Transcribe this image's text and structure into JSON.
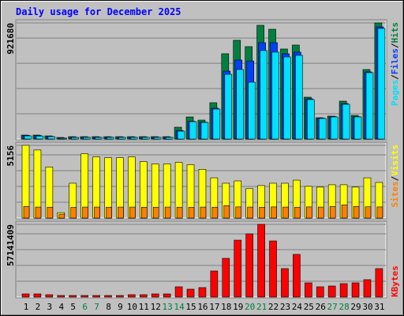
{
  "chart_data": [
    {
      "type": "bar",
      "title": "Daily usage for December 2025",
      "ylim": [
        0,
        921680
      ],
      "yticks": [
        921680
      ],
      "legend_separator": "/",
      "series": [
        {
          "name": "Hits",
          "color": "#008040",
          "values": [
            31350,
            31350,
            25080,
            12540,
            18810,
            18810,
            18810,
            18810,
            18810,
            18810,
            18810,
            18810,
            18810,
            94050,
            175560,
            150480,
            288420,
            677160,
            783750,
            733590,
            902880,
            871530,
            714780,
            746130,
            332310,
            169290,
            181830,
            300960,
            188100,
            551760,
            921680
          ]
        },
        {
          "name": "Files",
          "color": "#0040ff",
          "values": [
            28000,
            27000,
            21000,
            9000,
            15000,
            15500,
            15500,
            15500,
            15500,
            15500,
            15500,
            15500,
            15500,
            68000,
            141000,
            134000,
            245000,
            539000,
            627000,
            620000,
            765000,
            765000,
            677000,
            690000,
            320000,
            166000,
            178000,
            282000,
            178000,
            533000,
            890000
          ]
        },
        {
          "name": "Pages",
          "color": "#00e0ff",
          "values": [
            25000,
            24000,
            19000,
            7000,
            13000,
            13500,
            13500,
            13500,
            13500,
            13500,
            13500,
            13500,
            13500,
            62700,
            137900,
            131600,
            238000,
            514000,
            551800,
            451400,
            702200,
            689700,
            652000,
            664600,
            313500,
            163000,
            175600,
            275900,
            175600,
            526700,
            877800
          ]
        }
      ]
    },
    {
      "type": "bar",
      "ylim": [
        0,
        5156
      ],
      "yticks": [
        5156
      ],
      "legend_separator": "/",
      "series": [
        {
          "name": "Visits",
          "color": "#ffff00",
          "values": [
            5156,
            4827,
            3620,
            384,
            2468,
            4553,
            4333,
            4278,
            4278,
            4333,
            4004,
            3840,
            3840,
            3949,
            3785,
            3456,
            2852,
            2468,
            2633,
            2084,
            2304,
            2468,
            2468,
            2688,
            2249,
            2194,
            2359,
            2359,
            2194,
            2852,
            2523
          ]
        },
        {
          "name": "Sites",
          "color": "#ff8000",
          "values": [
            820,
            780,
            770,
            275,
            760,
            780,
            780,
            770,
            780,
            780,
            770,
            770,
            780,
            770,
            760,
            780,
            770,
            880,
            790,
            780,
            770,
            790,
            780,
            770,
            790,
            780,
            820,
            930,
            820,
            800,
            790
          ]
        }
      ]
    },
    {
      "type": "bar",
      "ylim": [
        0,
        57141409
      ],
      "yticks": [
        57141409
      ],
      "categories": [
        "1",
        "2",
        "3",
        "4",
        "5",
        "6",
        "7",
        "8",
        "9",
        "10",
        "11",
        "12",
        "13",
        "14",
        "15",
        "16",
        "17",
        "18",
        "19",
        "20",
        "21",
        "22",
        "23",
        "24",
        "25",
        "26",
        "27",
        "28",
        "29",
        "30",
        "31"
      ],
      "category_colors": [
        "#000000",
        "#000000",
        "#000000",
        "#000000",
        "#000000",
        "#008040",
        "#008040",
        "#000000",
        "#000000",
        "#000000",
        "#000000",
        "#000000",
        "#008040",
        "#008040",
        "#000000",
        "#000000",
        "#000000",
        "#000000",
        "#000000",
        "#008040",
        "#008040",
        "#000000",
        "#000000",
        "#000000",
        "#000000",
        "#000000",
        "#008040",
        "#008040",
        "#000000",
        "#000000",
        "#000000"
      ],
      "series": [
        {
          "name": "KBytes",
          "color": "#ff0000",
          "values": [
            2484400,
            2484400,
            1863300,
            1242200,
            1242200,
            1242200,
            1242200,
            1242200,
            1242200,
            1863300,
            1863300,
            2484400,
            2484400,
            8074300,
            6211000,
            7453200,
            20496300,
            30433900,
            44719200,
            49688000,
            57141409,
            44098100,
            22359600,
            33539400,
            11179800,
            8074300,
            8695400,
            10558700,
            11179800,
            13664200,
            22359600
          ]
        }
      ]
    }
  ]
}
